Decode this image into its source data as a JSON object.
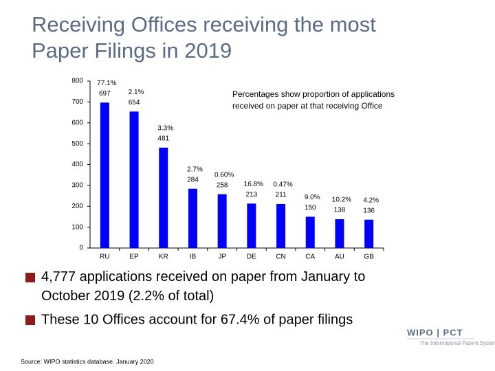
{
  "chart_data": {
    "type": "bar",
    "title": "Receiving Offices receiving the most Paper Filings in 2019",
    "note": "Percentages show proportion of applications received on paper at that receiving Office",
    "categories": [
      "RU",
      "EP",
      "KR",
      "IB",
      "JP",
      "DE",
      "CN",
      "CA",
      "AU",
      "GB"
    ],
    "values": [
      697,
      654,
      481,
      284,
      258,
      213,
      211,
      150,
      138,
      136
    ],
    "percent_labels": [
      "77.1%",
      "2.1%",
      "3.3%",
      "2.7%",
      "0.60%",
      "16.8%",
      "0.47%",
      "9.0%",
      "10.2%",
      "4.2%"
    ],
    "color": "#0000ff",
    "ylim": [
      0,
      800
    ],
    "yticks": [
      0,
      100,
      200,
      300,
      400,
      500,
      600,
      700,
      800
    ],
    "grid": false
  },
  "bullets": [
    "4,777 applications received on paper from January to October 2019 (2.2% of total)",
    "These 10 Offices account for 67.4% of paper filings"
  ],
  "source": "Source: WIPO statistics database. January 2020",
  "logo": {
    "name": "WIPO | PCT",
    "tagline": "The International Patent System"
  }
}
